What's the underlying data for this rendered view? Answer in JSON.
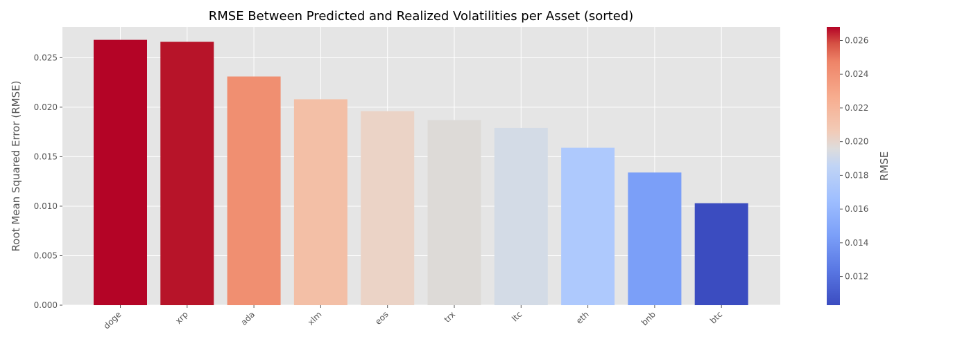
{
  "chart_data": {
    "type": "bar",
    "title": "RMSE Between Predicted and Realized Volatilities per Asset (sorted)",
    "xlabel": "",
    "ylabel": "Root Mean Squared Error (RMSE)",
    "categories": [
      "doge",
      "xrp",
      "ada",
      "xlm",
      "eos",
      "trx",
      "ltc",
      "eth",
      "bnb",
      "btc"
    ],
    "values": [
      0.0268,
      0.0266,
      0.0231,
      0.0208,
      0.0196,
      0.0187,
      0.0179,
      0.0159,
      0.0134,
      0.0103
    ],
    "colors": [
      "#b40426",
      "#b71429",
      "#f08f71",
      "#f3bfa6",
      "#ebd3c6",
      "#dddad7",
      "#d3dbe6",
      "#aec9fd",
      "#7b9ff8",
      "#3b4cc0"
    ],
    "ylim": [
      0,
      0.0281
    ],
    "yticks": [
      "0.000",
      "0.005",
      "0.010",
      "0.015",
      "0.020",
      "0.025"
    ],
    "grid": true,
    "colorbar": {
      "label": "RMSE",
      "range": [
        0.0103,
        0.0268
      ],
      "ticks": [
        "0.012",
        "0.014",
        "0.016",
        "0.018",
        "0.020",
        "0.022",
        "0.024",
        "0.026"
      ],
      "colormap": "coolwarm"
    }
  }
}
